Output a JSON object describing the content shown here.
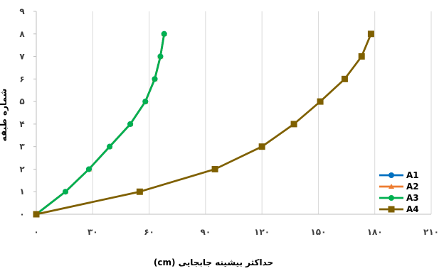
{
  "chart_data": {
    "type": "line",
    "xlabel": "حداکثر بیشینه جابجایی (cm)",
    "ylabel": "شماره طبقه",
    "x_tick_labels": [
      "۰",
      "۳۰",
      "۶۰",
      "۹۰",
      "۱۲۰",
      "۱۵۰",
      "۱۸۰",
      "۲۱۰"
    ],
    "y_tick_labels": [
      "۰",
      "۱",
      "۲",
      "۳",
      "۴",
      "۵",
      "۶",
      "۷",
      "۸",
      "۹"
    ],
    "xlim": [
      0,
      210
    ],
    "ylim": [
      0,
      9
    ],
    "xticks": [
      0,
      30,
      60,
      90,
      120,
      150,
      180,
      210
    ],
    "yticks": [
      0,
      1,
      2,
      3,
      4,
      5,
      6,
      7,
      8,
      9
    ],
    "grid": "vertical",
    "legend_position": "bottom-right",
    "series": [
      {
        "name": "A1",
        "color": "#0070C0",
        "marker": "circle",
        "x": [
          0,
          15.5,
          28,
          39,
          50,
          58,
          63,
          66,
          68
        ],
        "y": [
          0,
          1,
          2,
          3,
          4,
          5,
          6,
          7,
          8
        ]
      },
      {
        "name": "A2",
        "color": "#ED7D31",
        "marker": "triangle",
        "x": [
          0,
          15.5,
          28,
          39,
          50,
          58,
          63,
          66,
          68
        ],
        "y": [
          0,
          1,
          2,
          3,
          4,
          5,
          6,
          7,
          8
        ]
      },
      {
        "name": "A3",
        "color": "#00B050",
        "marker": "circle",
        "x": [
          0,
          15.5,
          28,
          39,
          50,
          58,
          63,
          66,
          68
        ],
        "y": [
          0,
          1,
          2,
          3,
          4,
          5,
          6,
          7,
          8
        ]
      },
      {
        "name": "A4",
        "color": "#7F6000",
        "marker": "square",
        "x": [
          0,
          55,
          95,
          120,
          137,
          151,
          164,
          173,
          178
        ],
        "y": [
          0,
          1,
          2,
          3,
          4,
          5,
          6,
          7,
          8
        ]
      }
    ]
  }
}
